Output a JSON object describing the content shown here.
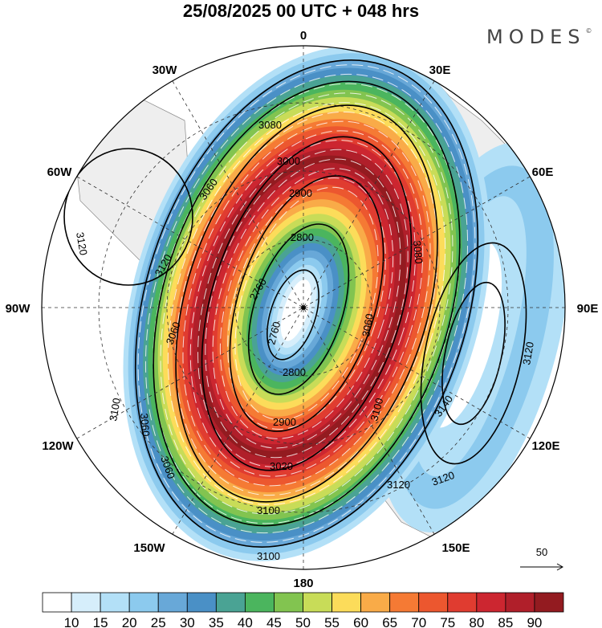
{
  "title": "25/08/2025  00 UTC  + 048 hrs",
  "logo": {
    "text": "MODES",
    "mark": "©"
  },
  "longitude_labels": {
    "lon_0": "0",
    "lon_30e": "30E",
    "lon_60e": "60E",
    "lon_90e": "90E",
    "lon_120e": "120E",
    "lon_150e": "150E",
    "lon_180": "180",
    "lon_150w": "150W",
    "lon_120w": "120W",
    "lon_90w": "90W",
    "lon_60w": "60W",
    "lon_30w": "30W"
  },
  "contour_labels": [
    "3080",
    "3060",
    "3000",
    "2900",
    "2800",
    "2760",
    "2760",
    "3120",
    "3120",
    "3060",
    "3080",
    "3100",
    "3060",
    "3100",
    "3060",
    "2800",
    "2900",
    "3020",
    "3060",
    "3100",
    "3100",
    "3140",
    "3120",
    "3120",
    "3120"
  ],
  "reference_vector": {
    "label": "50"
  },
  "colorbar": {
    "labels": [
      "10",
      "15",
      "20",
      "25",
      "30",
      "35",
      "40",
      "45",
      "50",
      "55",
      "60",
      "65",
      "70",
      "75",
      "80",
      "85",
      "90"
    ],
    "colors": [
      "#ffffff",
      "#d6eefb",
      "#b3e0f7",
      "#8ccaee",
      "#68a8d8",
      "#4a90c6",
      "#4aa394",
      "#4bb55e",
      "#82c450",
      "#c8dc58",
      "#fcdc5a",
      "#f9ab48",
      "#f57a34",
      "#ec572f",
      "#e03c30",
      "#cc2630",
      "#b01f2a",
      "#931b20"
    ]
  },
  "colors": {
    "land": "#eeeeee",
    "coast": "#888888",
    "contour": "#000000",
    "wind": "#ffffff"
  }
}
